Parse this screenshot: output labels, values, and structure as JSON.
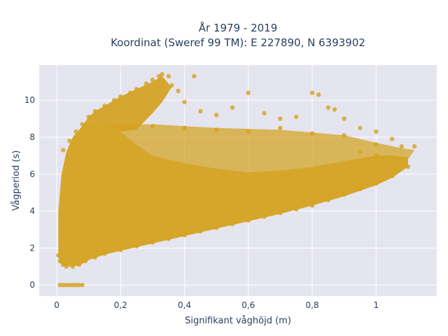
{
  "chart_data": {
    "type": "scatter",
    "title_line1": "År 1979 - 2019",
    "title_line2": "Koordinat (Sweref 99 TM): E 227890, N 6393902",
    "xlabel": "Signifikant våghöjd (m)",
    "ylabel": "Vågperiod (s)",
    "xlim": [
      -0.055,
      1.19
    ],
    "ylim": [
      -0.6,
      11.9
    ],
    "x_ticks": [
      0,
      0.2,
      0.4,
      0.6,
      0.8,
      1
    ],
    "x_tick_labels": [
      "0",
      "0,2",
      "0,4",
      "0,6",
      "0,8",
      "1"
    ],
    "y_ticks": [
      0,
      2,
      4,
      6,
      8,
      10
    ],
    "y_tick_labels": [
      "0",
      "2",
      "4",
      "6",
      "8",
      "10"
    ],
    "grid": true,
    "marker_color": "#d4a21f",
    "plot_bg": "#e5e5f0",
    "points": [
      [
        0.01,
        0
      ],
      [
        0.02,
        0
      ],
      [
        0.03,
        0
      ],
      [
        0.04,
        0
      ],
      [
        0.05,
        0
      ],
      [
        0.06,
        0
      ],
      [
        0.07,
        0
      ],
      [
        0.08,
        0
      ],
      [
        0.005,
        1.6
      ],
      [
        0.01,
        1.3
      ],
      [
        0.02,
        1.1
      ],
      [
        0.03,
        1.0
      ],
      [
        0.05,
        1.0
      ],
      [
        0.07,
        1.1
      ],
      [
        0.09,
        1.3
      ],
      [
        0.12,
        1.5
      ],
      [
        0.15,
        1.7
      ],
      [
        0.2,
        1.9
      ],
      [
        0.25,
        2.1
      ],
      [
        0.3,
        2.3
      ],
      [
        0.35,
        2.5
      ],
      [
        0.4,
        2.7
      ],
      [
        0.45,
        2.9
      ],
      [
        0.5,
        3.1
      ],
      [
        0.55,
        3.3
      ],
      [
        0.6,
        3.5
      ],
      [
        0.65,
        3.7
      ],
      [
        0.7,
        3.9
      ],
      [
        0.75,
        4.1
      ],
      [
        0.8,
        4.3
      ],
      [
        0.85,
        4.6
      ],
      [
        0.9,
        4.9
      ],
      [
        0.95,
        5.2
      ],
      [
        1.0,
        5.5
      ],
      [
        1.05,
        5.9
      ],
      [
        1.1,
        6.4
      ],
      [
        0.02,
        7.3
      ],
      [
        0.04,
        7.8
      ],
      [
        0.06,
        8.3
      ],
      [
        0.08,
        8.7
      ],
      [
        0.1,
        9.1
      ],
      [
        0.12,
        9.4
      ],
      [
        0.15,
        9.7
      ],
      [
        0.18,
        10.0
      ],
      [
        0.2,
        10.2
      ],
      [
        0.23,
        10.4
      ],
      [
        0.25,
        10.6
      ],
      [
        0.28,
        10.9
      ],
      [
        0.3,
        11.1
      ],
      [
        0.32,
        11.3
      ],
      [
        0.33,
        11.4
      ],
      [
        0.35,
        11.3
      ],
      [
        0.43,
        11.3
      ],
      [
        0.36,
        10.8
      ],
      [
        0.38,
        10.5
      ],
      [
        0.4,
        9.9
      ],
      [
        0.45,
        9.4
      ],
      [
        0.5,
        9.2
      ],
      [
        0.55,
        9.6
      ],
      [
        0.6,
        10.4
      ],
      [
        0.65,
        9.3
      ],
      [
        0.7,
        9.0
      ],
      [
        0.75,
        9.1
      ],
      [
        0.8,
        10.4
      ],
      [
        0.82,
        10.3
      ],
      [
        0.85,
        9.6
      ],
      [
        0.87,
        9.5
      ],
      [
        0.9,
        9.0
      ],
      [
        0.95,
        8.5
      ],
      [
        1.0,
        8.3
      ],
      [
        1.05,
        7.9
      ],
      [
        1.08,
        7.5
      ],
      [
        1.12,
        7.5
      ],
      [
        0.2,
        8.5
      ],
      [
        0.3,
        8.6
      ],
      [
        0.4,
        8.5
      ],
      [
        0.5,
        8.4
      ],
      [
        0.6,
        8.3
      ],
      [
        0.7,
        8.5
      ],
      [
        0.8,
        8.2
      ],
      [
        0.9,
        8.1
      ],
      [
        1.0,
        7.6
      ],
      [
        0.95,
        7.2
      ],
      [
        1.0,
        7.0
      ]
    ]
  }
}
